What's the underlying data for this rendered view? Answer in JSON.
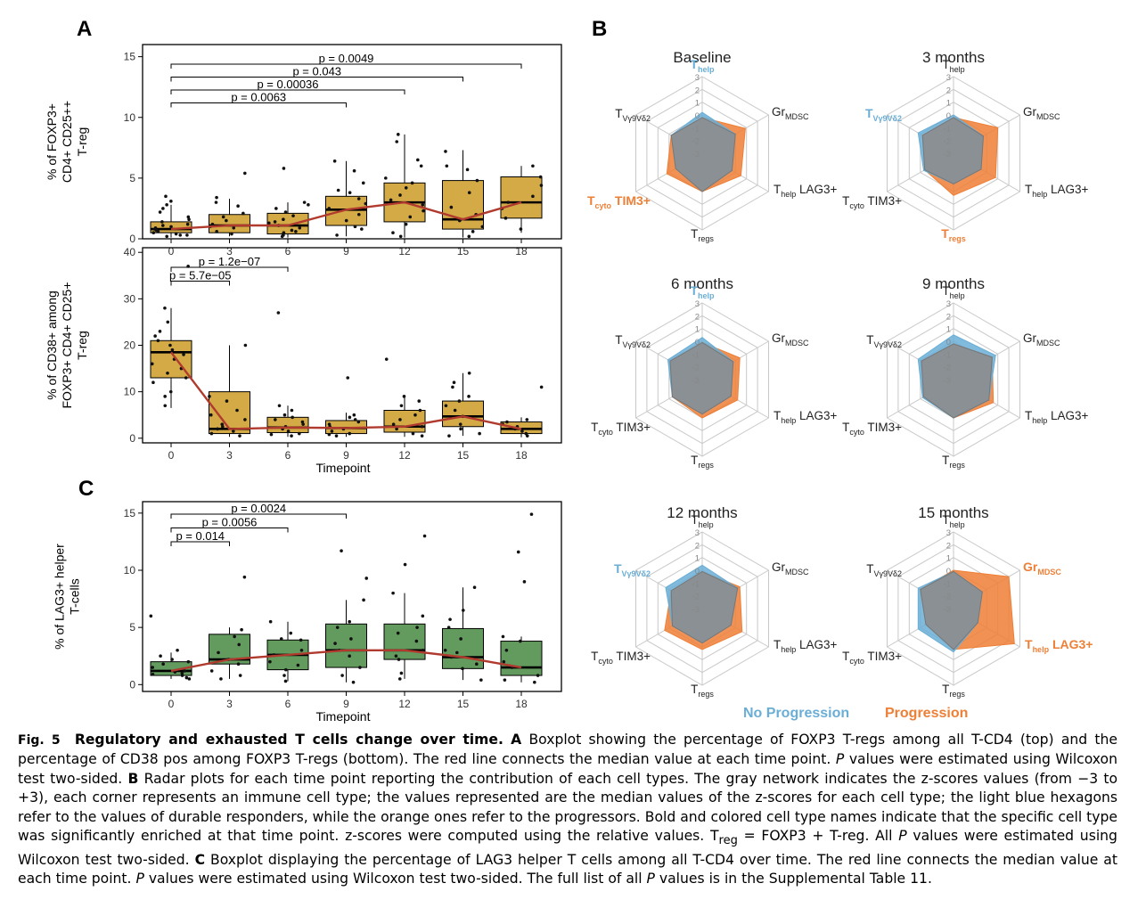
{
  "panel_letters": {
    "A": "A",
    "B": "B",
    "C": "C"
  },
  "colors": {
    "box_gold": "#d4aa47",
    "box_green": "#639a5e",
    "median_line": "#b03a2e",
    "no_progression": "#6aaed6",
    "progression": "#ee7f36",
    "gray_network": "#8c8c8c"
  },
  "chart_data": [
    {
      "type": "box",
      "panel": "A-top",
      "ylabel": [
        "% of FOXP3+",
        "CD4+ CD25++",
        "T-reg"
      ],
      "xlabel": "",
      "categories": [
        "0",
        "3",
        "6",
        "9",
        "12",
        "15",
        "18"
      ],
      "ylim": [
        0,
        16
      ],
      "yticks": [
        0,
        5,
        10,
        15
      ],
      "boxes": [
        {
          "q1": 0.5,
          "median": 0.8,
          "q3": 1.4,
          "low": 0.1,
          "high": 2.8
        },
        {
          "q1": 0.5,
          "median": 1.1,
          "q3": 2.0,
          "low": 0.2,
          "high": 3.3
        },
        {
          "q1": 0.4,
          "median": 1.1,
          "q3": 2.1,
          "low": 0.1,
          "high": 3.0
        },
        {
          "q1": 1.1,
          "median": 2.4,
          "q3": 3.5,
          "low": 0.2,
          "high": 6.4
        },
        {
          "q1": 1.4,
          "median": 3.0,
          "q3": 4.6,
          "low": 0.1,
          "high": 8.6
        },
        {
          "q1": 0.8,
          "median": 1.6,
          "q3": 4.8,
          "low": 0.1,
          "high": 7.3
        },
        {
          "q1": 1.7,
          "median": 3.0,
          "q3": 5.1,
          "low": 0.5,
          "high": 6.0
        }
      ],
      "medians_line": [
        0.8,
        1.1,
        1.1,
        2.4,
        3.0,
        1.6,
        3.0
      ],
      "points": [
        [
          0.3,
          1.8,
          0.5,
          2.8,
          1.2,
          0.7,
          3.5,
          1.0,
          0.4,
          2.2,
          0.9,
          1.6,
          0.2,
          0.6,
          3.1,
          1.4,
          0.8,
          0.3,
          2.5,
          1.1
        ],
        [
          1.0,
          5.4,
          0.6,
          2.1,
          1.5,
          3.4,
          0.4,
          1.8,
          2.7,
          0.9,
          1.2,
          3.0
        ],
        [
          0.5,
          1.3,
          2.8,
          0.2,
          1.9,
          0.7,
          3.0,
          1.1,
          0.4,
          2.2,
          1.6,
          0.9,
          5.8,
          0.3,
          2.5,
          1.4,
          0.6
        ],
        [
          2.5,
          6.4,
          1.0,
          3.3,
          4.6,
          0.8,
          2.0,
          5.6,
          3.8,
          1.5,
          2.9,
          0.3,
          4.0
        ],
        [
          3.2,
          8.6,
          1.8,
          4.6,
          0.5,
          6.0,
          2.3,
          8.0,
          1.2,
          3.6,
          5.0,
          2.8,
          0.2,
          6.5,
          4.2
        ],
        [
          1.5,
          7.2,
          0.6,
          4.8,
          2.6,
          1.0,
          6.0,
          3.8,
          0.2,
          5.7,
          2.0
        ],
        [
          3.0,
          6.0,
          1.7,
          4.4,
          2.5,
          5.1,
          0.8,
          3.5
        ]
      ],
      "pvalues": [
        {
          "from": "0",
          "to": "18",
          "label": "p = 0.0049"
        },
        {
          "from": "0",
          "to": "15",
          "label": "p = 0.043"
        },
        {
          "from": "0",
          "to": "12",
          "label": "p = 0.00036"
        },
        {
          "from": "0",
          "to": "9",
          "label": "p = 0.0063"
        }
      ]
    },
    {
      "type": "box",
      "panel": "A-bottom",
      "ylabel": [
        "% of CD38+ among",
        "FOXP3+ CD4+ CD25+",
        "T-reg"
      ],
      "xlabel": "Timepoint",
      "categories": [
        "0",
        "3",
        "6",
        "9",
        "12",
        "15",
        "18"
      ],
      "ylim": [
        -1,
        41
      ],
      "yticks": [
        0,
        10,
        20,
        30,
        40
      ],
      "boxes": [
        {
          "q1": 13.0,
          "median": 18.5,
          "q3": 21.0,
          "low": 6.5,
          "high": 28.0
        },
        {
          "q1": 1.0,
          "median": 2.0,
          "q3": 10.0,
          "low": 0.3,
          "high": 20.0
        },
        {
          "q1": 1.2,
          "median": 2.3,
          "q3": 4.5,
          "low": 0.3,
          "high": 7.0
        },
        {
          "q1": 1.0,
          "median": 2.2,
          "q3": 3.8,
          "low": 0.3,
          "high": 5.5
        },
        {
          "q1": 1.3,
          "median": 2.5,
          "q3": 6.0,
          "low": 0.3,
          "high": 9.0
        },
        {
          "q1": 2.5,
          "median": 4.7,
          "q3": 8.0,
          "low": 0.5,
          "high": 14.0
        },
        {
          "q1": 1.0,
          "median": 2.0,
          "q3": 3.5,
          "low": 0.2,
          "high": 4.5
        }
      ],
      "medians_line": [
        18.5,
        2.0,
        2.3,
        2.2,
        2.5,
        4.7,
        2.0
      ],
      "points": [
        [
          37,
          28,
          25,
          22,
          20,
          19,
          18,
          17,
          15,
          14,
          12,
          10,
          9,
          7,
          21,
          16,
          13,
          23
        ],
        [
          20,
          9,
          5,
          3,
          2,
          1,
          0.5,
          4,
          6,
          1.5,
          8,
          2.5
        ],
        [
          27,
          7,
          5,
          4,
          3,
          2,
          1,
          0.5,
          6,
          2.5,
          3.5,
          1.5,
          4.5,
          0.8
        ],
        [
          13,
          5,
          4,
          3,
          2.5,
          1.5,
          1,
          0.5,
          3.5,
          2,
          4.5,
          0.8
        ],
        [
          17,
          9,
          7,
          6,
          4,
          3,
          2,
          1,
          0.5,
          5,
          8,
          2.5
        ],
        [
          14,
          11,
          9,
          8,
          6,
          4.7,
          3,
          2,
          1,
          0.5,
          7,
          12
        ],
        [
          11,
          4,
          3,
          2,
          1.5,
          1,
          0.5,
          3.5,
          2.5
        ]
      ],
      "pvalues": [
        {
          "from": "0",
          "to": "6",
          "label": "p = 1.2e−07"
        },
        {
          "from": "0",
          "to": "3",
          "label": "p = 5.7e−05"
        }
      ]
    },
    {
      "type": "box",
      "panel": "C",
      "ylabel": [
        "% of LAG3+ helper",
        "T-cells"
      ],
      "xlabel": "Timepoint",
      "categories": [
        "0",
        "3",
        "6",
        "9",
        "12",
        "15",
        "18"
      ],
      "ylim": [
        -0.6,
        16
      ],
      "yticks": [
        0,
        5,
        10,
        15
      ],
      "boxes": [
        {
          "q1": 0.8,
          "median": 1.2,
          "q3": 2.0,
          "low": 0.5,
          "high": 2.8
        },
        {
          "q1": 1.8,
          "median": 2.2,
          "q3": 4.4,
          "low": 0.5,
          "high": 5.0
        },
        {
          "q1": 1.3,
          "median": 2.6,
          "q3": 3.9,
          "low": 0.3,
          "high": 5.5
        },
        {
          "q1": 1.5,
          "median": 3.0,
          "q3": 5.3,
          "low": 0.2,
          "high": 7.4
        },
        {
          "q1": 2.2,
          "median": 3.0,
          "q3": 5.3,
          "low": 0.5,
          "high": 8.0
        },
        {
          "q1": 1.4,
          "median": 2.4,
          "q3": 4.9,
          "low": 0.4,
          "high": 8.5
        },
        {
          "q1": 0.8,
          "median": 1.5,
          "q3": 3.8,
          "low": 0.2,
          "high": 4.2
        }
      ],
      "medians_line": [
        1.2,
        2.2,
        2.6,
        3.0,
        3.0,
        2.4,
        1.5
      ],
      "points": [
        [
          0.5,
          0.8,
          1.0,
          1.2,
          1.5,
          2.0,
          2.5,
          3.0,
          0.6,
          1.1,
          6.0,
          0.9,
          1.8,
          2.2
        ],
        [
          9.4,
          4.8,
          4.2,
          3.5,
          2.2,
          1.8,
          1.2,
          0.8,
          2.8,
          0.5
        ],
        [
          5.5,
          4.5,
          3.9,
          3.0,
          2.6,
          2.0,
          1.3,
          0.8,
          0.3,
          4.0,
          1.7
        ],
        [
          11.7,
          7.4,
          5.5,
          5.0,
          4.0,
          3.0,
          2.5,
          1.5,
          0.8,
          0.2,
          9.3,
          3.6
        ],
        [
          13.0,
          10.5,
          8.0,
          6.0,
          5.0,
          3.8,
          3.0,
          2.5,
          2.2,
          1.0,
          0.5,
          4.5
        ],
        [
          8.5,
          6.5,
          5.0,
          4.0,
          3.0,
          2.4,
          1.8,
          1.4,
          0.4,
          2.8,
          5.7
        ],
        [
          14.9,
          11.6,
          9.0,
          4.2,
          3.8,
          2.0,
          1.5,
          0.8,
          0.4,
          0.2,
          3.0
        ]
      ],
      "pvalues": [
        {
          "from": "0",
          "to": "9",
          "label": "p = 0.0024"
        },
        {
          "from": "0",
          "to": "6",
          "label": "p = 0.0056"
        },
        {
          "from": "0",
          "to": "3",
          "label": "p = 0.014"
        }
      ]
    },
    {
      "type": "radar",
      "panel": "B",
      "axes": [
        {
          "base": "T",
          "sub": "help",
          "suffix": ""
        },
        {
          "base": "Gr",
          "sub": "MDSC",
          "suffix": ""
        },
        {
          "base": "T",
          "sub": "help",
          "suffix": "LAG3+"
        },
        {
          "base": "T",
          "sub": "regs",
          "suffix": ""
        },
        {
          "base": "T",
          "sub": "cyto",
          "suffix": "TIM3+"
        },
        {
          "base": "T",
          "sub": "Vγ9Vδ2",
          "suffix": ""
        }
      ],
      "rlim": [
        -3,
        3
      ],
      "rticks": [
        "3",
        "2",
        "1",
        "0",
        "-1",
        "-2",
        "-3"
      ],
      "series_names": [
        "No Progression",
        "Progression"
      ],
      "plots": [
        {
          "title": "Baseline",
          "highlight": [
            0,
            4
          ],
          "no_progression": [
            0.2,
            0.0,
            -0.3,
            0.0,
            -0.6,
            -0.2
          ],
          "progression": [
            -0.2,
            0.9,
            0.5,
            0.0,
            0.2,
            -0.2
          ]
        },
        {
          "title": "3 months",
          "highlight": [
            5,
            3
          ],
          "no_progression": [
            0.0,
            -0.3,
            -0.5,
            -0.6,
            -0.3,
            0.2
          ],
          "progression": [
            -0.2,
            1.0,
            0.8,
            0.3,
            -0.4,
            -0.2
          ]
        },
        {
          "title": "6 months",
          "highlight": [
            0
          ],
          "no_progression": [
            0.3,
            -0.2,
            -0.4,
            -0.3,
            -0.3,
            0.1
          ],
          "progression": [
            -0.1,
            0.4,
            0.2,
            0.0,
            -0.3,
            -0.1
          ]
        },
        {
          "title": "9 months",
          "highlight": [],
          "no_progression": [
            0.5,
            0.8,
            0.2,
            0.0,
            -0.2,
            0.2
          ],
          "progression": [
            -0.2,
            0.5,
            0.6,
            0.0,
            -0.3,
            -0.1
          ]
        },
        {
          "title": "12 months",
          "highlight": [
            5
          ],
          "no_progression": [
            0.4,
            0.2,
            -0.4,
            -0.3,
            -0.3,
            0.3
          ],
          "progression": [
            -0.1,
            0.4,
            0.6,
            0.2,
            0.4,
            -0.2
          ]
        },
        {
          "title": "15 months",
          "highlight": [
            1,
            2
          ],
          "no_progression": [
            -0.1,
            -0.4,
            -0.8,
            0.4,
            0.2,
            0.2
          ],
          "progression": [
            0.0,
            2.0,
            2.5,
            0.2,
            -0.5,
            0.0
          ]
        }
      ]
    }
  ],
  "legend": {
    "no_progression": "No Progression",
    "progression": "Progression"
  },
  "caption": {
    "label": "Fig. 5",
    "title": "Regulatory and exhausted T cells change over time.",
    "text_A_letter": "A",
    "text_A": "Boxplot showing the percentage of FOXP3 T-regs among all T-CD4 (top) and the percentage of CD38 pos among FOXP3 T-regs (bottom). The red line connects the median value at each time point.",
    "p_italic": "P",
    "text_A_end": "values were estimated using Wilcoxon test two-sided.",
    "text_B_letter": "B",
    "text_B": "Radar plots for each time point reporting the contribution of each cell types. The gray network indicates the z-scores values (from −3 to +3), each corner represents an immune cell type; the values represented are the median values of the z-scores for each cell type; the light blue hexagons refer to the values of durable responders, while the orange ones refer to the progressors. Bold and colored cell type names indicate that the specific cell type was significantly enriched at that time point. z-scores were computed using the relative values.",
    "treg_base": "T",
    "treg_sub": "reg",
    "treg_def": "= FOXP3 + T-reg. All",
    "text_B_end": "values were estimated using Wilcoxon test two-sided.",
    "text_C_letter": "C",
    "text_C": "Boxplot displaying the percentage of LAG3 helper T cells among all T-CD4 over time. The red line connects the median value at each time point.",
    "text_C_end1": "values were estimated using Wilcoxon test two-sided. The full list of all",
    "text_C_end2": "values is in the Supplemental Table 11."
  }
}
